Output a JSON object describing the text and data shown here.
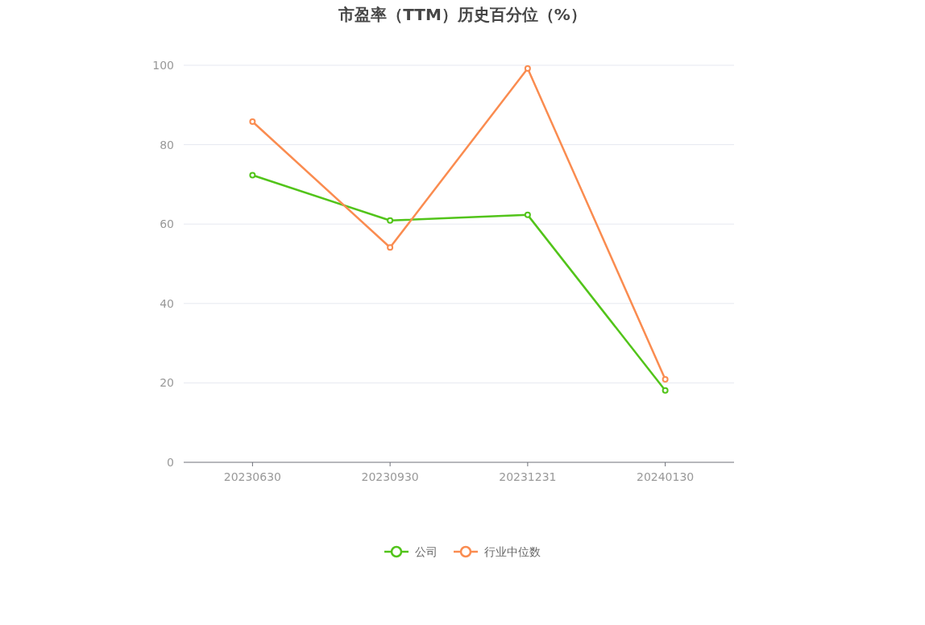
{
  "chart_data": {
    "type": "line",
    "title": "市盈率（TTM）历史百分位（%）",
    "categories": [
      "20230630",
      "20230930",
      "20231231",
      "20240130"
    ],
    "series": [
      {
        "name": "公司",
        "color": "#52c41a",
        "values": [
          72.3,
          60.9,
          62.3,
          18.1
        ]
      },
      {
        "name": "行业中位数",
        "color": "#fa8c50",
        "values": [
          85.8,
          54.1,
          99.2,
          20.9
        ]
      }
    ],
    "ylim": [
      0,
      100
    ],
    "yticks": [
      0,
      20,
      40,
      60,
      80,
      100
    ],
    "grid": "y",
    "legend": "bottom",
    "marker": "circle",
    "line_style": "solid"
  }
}
